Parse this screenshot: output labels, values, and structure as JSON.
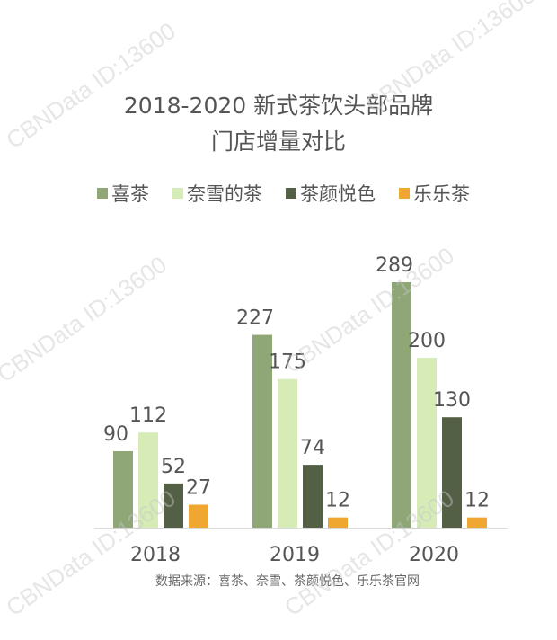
{
  "title_line1": "2018-2020 新式茶饮头部品牌",
  "title_line2": "门店增量对比",
  "source": "数据来源：喜茶、奈雪、茶颜悦色、乐乐茶官网",
  "watermark": "CBNData ID:13600",
  "chart_data": {
    "type": "bar",
    "title": "2018-2020 新式茶饮头部品牌门店增量对比",
    "categories": [
      "2018",
      "2019",
      "2020"
    ],
    "series": [
      {
        "name": "喜茶",
        "color": "#8fa676",
        "values": [
          90,
          227,
          289
        ]
      },
      {
        "name": "奈雪的茶",
        "color": "#d6ebb5",
        "values": [
          112,
          175,
          200
        ]
      },
      {
        "name": "茶颜悦色",
        "color": "#546046",
        "values": [
          52,
          74,
          130
        ]
      },
      {
        "name": "乐乐茶",
        "color": "#f0a732",
        "values": [
          27,
          12,
          12
        ]
      }
    ],
    "legend": "top",
    "grid": false,
    "ylim": [
      0,
      300
    ]
  }
}
